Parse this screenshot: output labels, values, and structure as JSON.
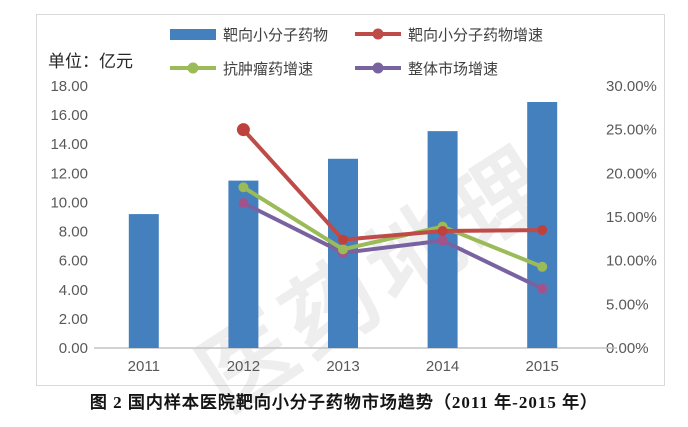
{
  "figure": {
    "caption": "图 2  国内样本医院靶向小分子药物市场趋势（2011 年-2015 年）",
    "watermark": "医药地理"
  },
  "chart_data": {
    "type": "bar+line combo",
    "title": "",
    "categories": [
      "2011",
      "2012",
      "2013",
      "2014",
      "2015"
    ],
    "grid": false,
    "legend_position": "top",
    "left_axis": {
      "title": "单位：亿元",
      "min": 0,
      "max": 18,
      "tick_step": 2,
      "tick_labels": [
        "18.00",
        "16.00",
        "14.00",
        "12.00",
        "10.00",
        "8.00",
        "6.00",
        "4.00",
        "2.00",
        "0.00"
      ]
    },
    "right_axis": {
      "min": 0,
      "max": 30,
      "tick_step": 5,
      "tick_labels": [
        "30.00%",
        "25.00%",
        "20.00%",
        "15.00%",
        "10.00%",
        "5.00%",
        "0.00%"
      ]
    },
    "bar_series": {
      "name": "靶向小分子药物",
      "axis": "left",
      "color": "#4580BE",
      "values": [
        9.2,
        11.5,
        13.0,
        14.9,
        16.9
      ]
    },
    "line_series": [
      {
        "name": "靶向小分子药物增速",
        "axis": "right",
        "color": "#BE4B48",
        "marker_color": "#BE413D",
        "values": [
          null,
          25.0,
          12.4,
          13.4,
          13.5
        ]
      },
      {
        "name": "抗肿瘤药增速",
        "axis": "right",
        "color": "#9BBB59",
        "marker_color": "#9BBB59",
        "values": [
          null,
          18.4,
          11.3,
          13.9,
          9.3
        ]
      },
      {
        "name": "整体市场增速",
        "axis": "right",
        "color": "#7862A0",
        "marker_color": "#A2538C",
        "values": [
          null,
          16.6,
          10.9,
          12.3,
          6.8
        ]
      }
    ],
    "legend": [
      {
        "label": "靶向小分子药物",
        "marker": "bar",
        "color": "#4580BE"
      },
      {
        "label": "靶向小分子药物增速",
        "marker": "line",
        "color": "#BE4B48"
      },
      {
        "label": "抗肿瘤药增速",
        "marker": "line",
        "color": "#9BBB59"
      },
      {
        "label": "整体市场增速",
        "marker": "line",
        "color": "#7862A0"
      }
    ]
  }
}
